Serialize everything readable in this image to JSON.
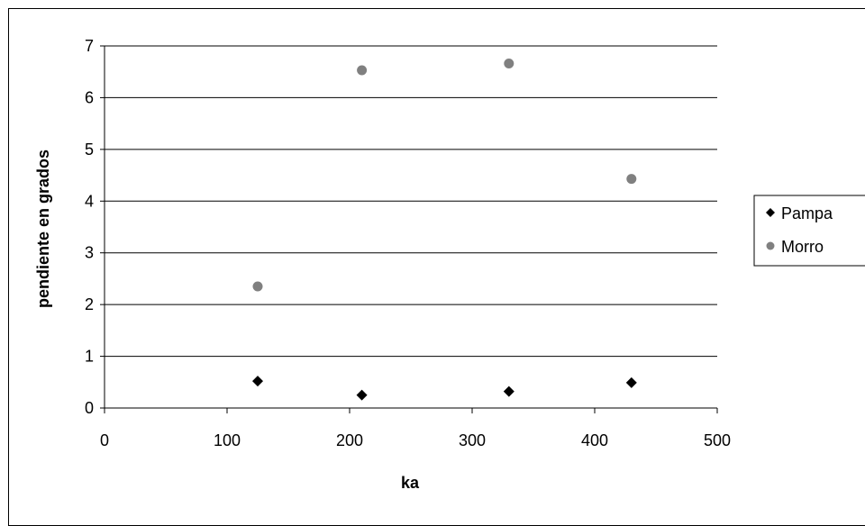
{
  "chart_data": {
    "type": "scatter",
    "title": "",
    "xlabel": "ka",
    "ylabel": "pendiente en grados",
    "xlim": [
      0,
      500
    ],
    "ylim": [
      0,
      7
    ],
    "xticks": [
      0,
      100,
      200,
      300,
      400,
      500
    ],
    "yticks": [
      0,
      1,
      2,
      3,
      4,
      5,
      6,
      7
    ],
    "grid": "horizontal",
    "legend_position": "right",
    "series": [
      {
        "name": "Pampa",
        "marker": "diamond",
        "color": "#000000",
        "x": [
          125,
          210,
          330,
          430
        ],
        "y": [
          0.52,
          0.25,
          0.32,
          0.49
        ]
      },
      {
        "name": "Morro",
        "marker": "circle",
        "color": "#808080",
        "x": [
          125,
          210,
          330,
          430
        ],
        "y": [
          2.35,
          6.53,
          6.66,
          4.43
        ]
      }
    ]
  }
}
